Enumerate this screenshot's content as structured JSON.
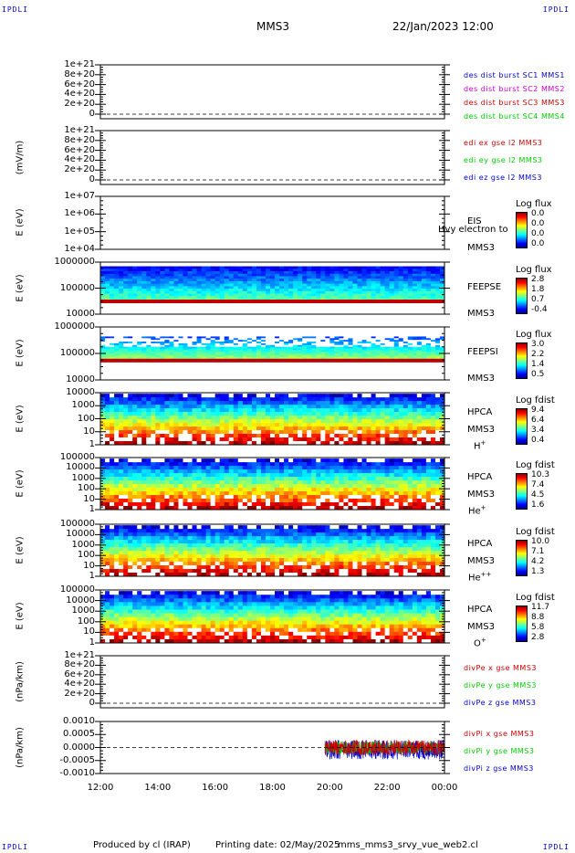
{
  "corner_label": "IPDLI",
  "header": {
    "spacecraft": "MMS3",
    "date": "22/Jan/2023 12:00"
  },
  "footer": {
    "produced_by": "Produced by cl (IRAP)",
    "printing_date": "Printing date: 02/May/2025",
    "filename": "mms_mms3_srvy_vue_web2.cl"
  },
  "colors": {
    "black": "#000000",
    "blue": "#0000cc",
    "magenta": "#cc00cc",
    "red": "#cc0000",
    "green": "#00cc00"
  },
  "chart_data": [
    {
      "type": "line",
      "panel": "des-dist-burst",
      "ylabel": "",
      "yticks": [
        "1e+21",
        "8e+20",
        "6e+20",
        "4e+20",
        "2e+20",
        "0"
      ],
      "legend": [
        {
          "text": "des dist burst SC1 MMS1",
          "color": "#0000cc"
        },
        {
          "text": "des dist burst SC2 MMS2",
          "color": "#cc00cc"
        },
        {
          "text": "des dist burst SC3 MMS3",
          "color": "#cc0000"
        },
        {
          "text": "des dist burst SC4 MMS4",
          "color": "#00cc00"
        }
      ]
    },
    {
      "type": "line",
      "panel": "edi-e-gse",
      "ylabel": "(mV/m)",
      "yticks": [
        "1e+21",
        "8e+20",
        "6e+20",
        "4e+20",
        "2e+20",
        "0"
      ],
      "legend": [
        {
          "text": "edi ex gse l2 MMS3",
          "color": "#cc0000"
        },
        {
          "text": "edi ey gse l2 MMS3",
          "color": "#00cc00"
        },
        {
          "text": "edi ez gse l2 MMS3",
          "color": "#0000cc"
        }
      ]
    },
    {
      "type": "heatmap",
      "panel": "eis",
      "ylabel": "E (eV)",
      "yticks": [
        "1e+07",
        "1e+06",
        "1e+05",
        "1e+04"
      ],
      "side_labels": [
        "EIS",
        "MMS3"
      ],
      "overlay_text": "Hvy electron to",
      "colorbar": {
        "title": "Log flux",
        "ticks": [
          "0.0",
          "0.0",
          "0.0",
          "0.0"
        ]
      }
    },
    {
      "type": "heatmap",
      "panel": "feepse",
      "ylabel": "E (eV)",
      "yticks": [
        "1000000",
        "100000",
        "10000"
      ],
      "side_labels": [
        "FEEPSE",
        "MMS3"
      ],
      "colorbar": {
        "title": "Log flux",
        "ticks": [
          "2.8",
          "1.8",
          "0.7",
          "-0.4"
        ]
      }
    },
    {
      "type": "heatmap",
      "panel": "feepsi",
      "ylabel": "E (eV)",
      "yticks": [
        "1000000",
        "100000",
        "10000"
      ],
      "side_labels": [
        "FEEPSI",
        "MMS3"
      ],
      "colorbar": {
        "title": "Log flux",
        "ticks": [
          "3.0",
          "2.2",
          "1.4",
          "0.5"
        ]
      }
    },
    {
      "type": "heatmap",
      "panel": "hpca-h",
      "ylabel": "E (eV)",
      "yticks": [
        "10000",
        "1000",
        "100",
        "10",
        "1"
      ],
      "side_labels": [
        "HPCA",
        "MMS3"
      ],
      "species": {
        "base": "H",
        "sup": "+"
      },
      "colorbar": {
        "title": "Log fdist",
        "ticks": [
          "9.4",
          "6.4",
          "3.4",
          "0.4"
        ]
      }
    },
    {
      "type": "heatmap",
      "panel": "hpca-he",
      "ylabel": "E (eV)",
      "yticks": [
        "100000",
        "10000",
        "1000",
        "100",
        "10",
        "1"
      ],
      "side_labels": [
        "HPCA",
        "MMS3"
      ],
      "species": {
        "base": "He",
        "sup": "+"
      },
      "colorbar": {
        "title": "Log fdist",
        "ticks": [
          "10.3",
          "7.4",
          "4.5",
          "1.6"
        ]
      }
    },
    {
      "type": "heatmap",
      "panel": "hpca-hepp",
      "ylabel": "E (eV)",
      "yticks": [
        "100000",
        "10000",
        "1000",
        "100",
        "10",
        "1"
      ],
      "side_labels": [
        "HPCA",
        "MMS3"
      ],
      "species": {
        "base": "He",
        "sup": "++"
      },
      "colorbar": {
        "title": "Log fdist",
        "ticks": [
          "10.0",
          "7.1",
          "4.2",
          "1.3"
        ]
      }
    },
    {
      "type": "heatmap",
      "panel": "hpca-o",
      "ylabel": "E (eV)",
      "yticks": [
        "100000",
        "10000",
        "1000",
        "100",
        "10",
        "1"
      ],
      "side_labels": [
        "HPCA",
        "MMS3"
      ],
      "species": {
        "base": "O",
        "sup": "+"
      },
      "colorbar": {
        "title": "Log fdist",
        "ticks": [
          "11.7",
          "8.8",
          "5.8",
          "2.8"
        ]
      }
    },
    {
      "type": "line",
      "panel": "divpe",
      "ylabel": "(nPa/km)",
      "yticks": [
        "1e+21",
        "8e+20",
        "6e+20",
        "4e+20",
        "2e+20",
        "0"
      ],
      "legend": [
        {
          "text": "divPe x gse MMS3",
          "color": "#cc0000"
        },
        {
          "text": "divPe y gse MMS3",
          "color": "#00cc00"
        },
        {
          "text": "divPe z gse MMS3",
          "color": "#0000cc"
        }
      ]
    },
    {
      "type": "line",
      "panel": "divpi",
      "ylabel": "(nPa/km)",
      "yticks": [
        "0.0010",
        "0.0005",
        "0.0000",
        "-0.0005",
        "-0.0010"
      ],
      "ylim": [
        -0.0012,
        0.0012
      ],
      "data_start": "19:50",
      "legend": [
        {
          "text": "divPi x gse MMS3",
          "color": "#cc0000"
        },
        {
          "text": "divPi y gse MMS3",
          "color": "#00cc00"
        },
        {
          "text": "divPi z gse MMS3",
          "color": "#0000cc"
        }
      ]
    }
  ],
  "xaxis": {
    "ticks": [
      "12:00",
      "14:00",
      "16:00",
      "18:00",
      "20:00",
      "22:00",
      "00:00"
    ]
  }
}
